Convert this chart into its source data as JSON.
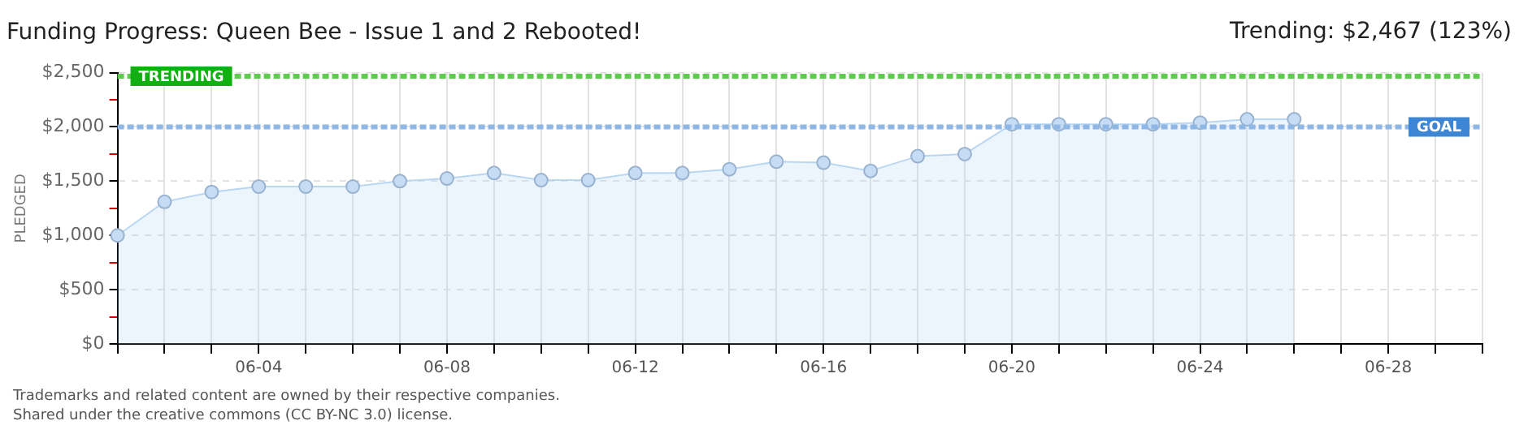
{
  "chart_data": {
    "type": "area",
    "title": "Funding Progress: Queen Bee - Issue 1 and 2 Rebooted!",
    "ylabel": "PLEDGED",
    "categories": [
      null,
      null,
      null,
      "06-04",
      null,
      null,
      null,
      "06-08",
      null,
      null,
      null,
      "06-12",
      null,
      null,
      null,
      "06-16",
      null,
      null,
      null,
      "06-20",
      null,
      null,
      null,
      "06-24",
      null,
      null,
      null,
      "06-28",
      null,
      null
    ],
    "series": [
      {
        "color": "#b9d6f2",
        "values": [
          1000,
          1310,
          1400,
          1450,
          1450,
          1450,
          1500,
          1525,
          1575,
          1510,
          1510,
          1575,
          1575,
          1610,
          1680,
          1670,
          1595,
          1730,
          1750,
          2025,
          2025,
          2025,
          2025,
          2040,
          2070,
          2070,
          null,
          null,
          null,
          null
        ]
      }
    ],
    "ylim": [
      0,
      2500
    ],
    "yticks": [
      {
        "value": 0,
        "label": "$0"
      },
      {
        "value": 250,
        "label": null
      },
      {
        "value": 500,
        "label": "$500"
      },
      {
        "value": 750,
        "label": null
      },
      {
        "value": 1000,
        "label": "$1,000"
      },
      {
        "value": 1250,
        "label": null
      },
      {
        "value": 1500,
        "label": "$1,500"
      },
      {
        "value": 1750,
        "label": null
      },
      {
        "value": 2000,
        "label": "$2,000"
      },
      {
        "value": 2250,
        "label": null
      },
      {
        "value": 2500,
        "label": "$2,500"
      }
    ],
    "ref_lines": [
      {
        "axis": "y",
        "value": 2467,
        "label": "TRENDING",
        "color": "#5ccc4c",
        "line_style": "dashed"
      },
      {
        "axis": "y",
        "value": 2000,
        "label": "GOAL",
        "color": "#8fb7e6",
        "line_style": "dashed"
      }
    ],
    "annotations": [
      "Trending: $2,467 (123%)",
      "Trademarks and related content are owned by their respective companies.",
      "Shared under the creative commons (CC BY-NC 3.0) license."
    ],
    "grid": true,
    "legend": false,
    "marker": "circle"
  }
}
